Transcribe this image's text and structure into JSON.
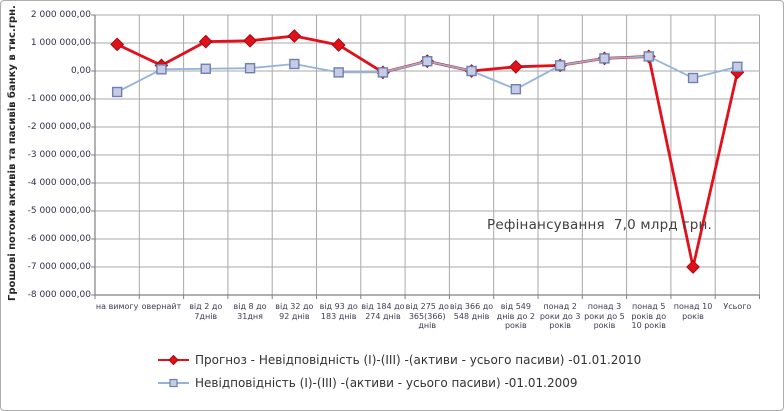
{
  "chart_data": {
    "type": "line",
    "title": "",
    "ylabel": "Грошові потоки активів та пасивів банку в тис.грн.",
    "xlabel": "",
    "ylim": [
      -8000000,
      2000000
    ],
    "y_tick_step": 1000000,
    "grid": true,
    "legend_position": "bottom-left",
    "y_tick_labels": [
      "2 000 000,00",
      "1 000 000,00",
      "0,00",
      "-1 000 000,00",
      "-2 000 000,00",
      "-3 000 000,00",
      "-4 000 000,00",
      "-5 000 000,00",
      "-6 000 000,00",
      "-7 000 000,00",
      "-8 000 000,00"
    ],
    "categories": [
      "на вимогу",
      "овернайт",
      "від 2 до 7днів",
      "від 8 до 31дня",
      "від 32 до 92 днів",
      "від 93 до 183 днів",
      "від 184 до 274 днів",
      "від 275 до 365(366) днів",
      "від 366 до 548 днів",
      "від 549 днів до 2 років",
      "понад 2 роки до 3 років",
      "понад 3 роки до 5 років",
      "понад 5 років до 10 років",
      "понад 10 років",
      "Усього"
    ],
    "series": [
      {
        "name": "Прогноз - Невідповідність (I)-(III) -(активи - усього пасиви) -01.01.2010",
        "marker": "diamond",
        "color": "#e0111a",
        "marker_fill": "#e0111a",
        "marker_border": "#9e0b10",
        "line_width": 2.8,
        "values": [
          950000,
          200000,
          1050000,
          1080000,
          1250000,
          930000,
          -50000,
          350000,
          0,
          150000,
          200000,
          450000,
          520000,
          -7000000,
          -50000
        ]
      },
      {
        "name": "Невідповідність (I)-(III) -(активи - усього пасиви) -01.01.2009",
        "marker": "square",
        "color": "#95b3d7",
        "marker_fill": "#c6cce3",
        "marker_border": "#6f7fb2",
        "line_width": 1.8,
        "values": [
          -750000,
          60000,
          80000,
          100000,
          250000,
          -50000,
          -50000,
          350000,
          0,
          -650000,
          200000,
          450000,
          520000,
          -250000,
          150000
        ]
      }
    ],
    "annotation": "Рефінансування  7,0 млрд грн.",
    "colors": {
      "grid": "#a9a9a9",
      "axis": "#808080",
      "frame_border": "#adadad"
    }
  }
}
